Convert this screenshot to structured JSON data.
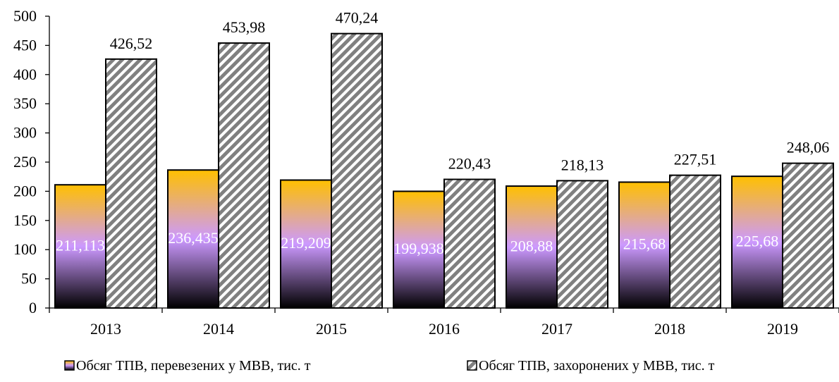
{
  "chart_data": {
    "type": "bar",
    "title": "",
    "xlabel": "",
    "ylabel": "",
    "categories": [
      "2013",
      "2014",
      "2015",
      "2016",
      "2017",
      "2018",
      "2019"
    ],
    "ylim": [
      0,
      500
    ],
    "yticks": [
      0,
      50,
      100,
      150,
      200,
      250,
      300,
      350,
      400,
      450,
      500
    ],
    "grid": false,
    "legend_position": "bottom",
    "series": [
      {
        "name": "Обсяг ТПВ, перевезених у МВВ, тис. т",
        "values": [
          211.113,
          236.435,
          219.209,
          199.938,
          208.88,
          215.68,
          225.68
        ],
        "labels": [
          "211,113",
          "236,435",
          "219,209",
          "199,938",
          "208,88",
          "215,68",
          "225,68"
        ],
        "fill": "gradient",
        "colors": [
          "#ffc000",
          "#cc99ff",
          "#000000"
        ]
      },
      {
        "name": "Обсяг ТПВ, захоронених у МВВ, тис. т",
        "values": [
          426.52,
          453.98,
          470.24,
          220.43,
          218.13,
          227.51,
          248.06
        ],
        "labels": [
          "426,52",
          "453,98",
          "470,24",
          "220,43",
          "218,13",
          "227,51",
          "248,06"
        ],
        "fill": "diagonal-hatch",
        "colors": [
          "#808080",
          "#ffffff"
        ]
      }
    ]
  }
}
